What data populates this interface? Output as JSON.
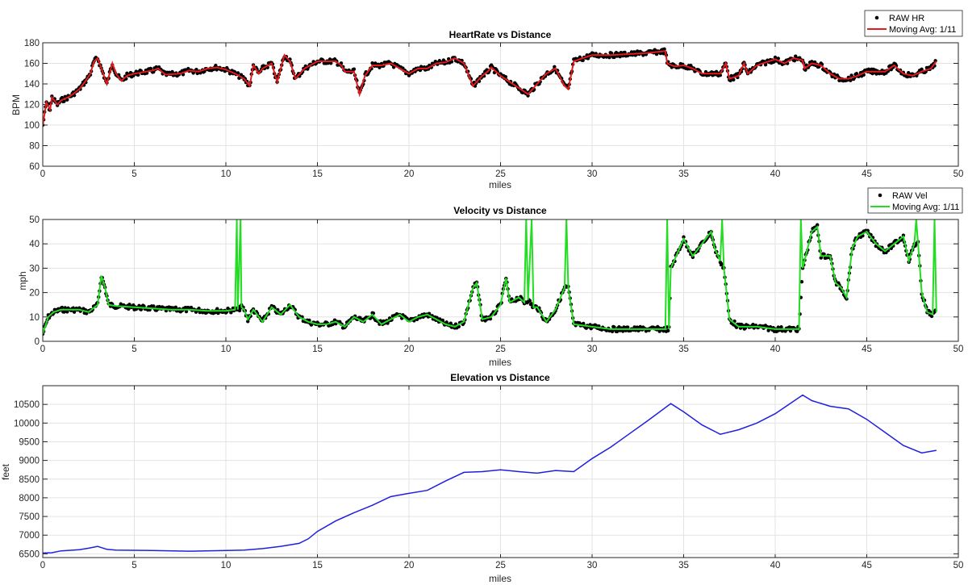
{
  "chart_data": [
    {
      "type": "line",
      "title": "HeartRate vs Distance",
      "xlabel": "miles",
      "ylabel": "BPM",
      "xlim": [
        0,
        50
      ],
      "ylim": [
        60,
        180
      ],
      "xticks": [
        0,
        5,
        10,
        15,
        20,
        25,
        30,
        35,
        40,
        45,
        50
      ],
      "yticks": [
        60,
        80,
        100,
        120,
        140,
        160,
        180
      ],
      "grid": true,
      "legend_position": "top-right",
      "series": [
        {
          "name": "RAW HR",
          "style": "markers",
          "color": "#000000"
        },
        {
          "name": "Moving Avg: 1/11",
          "style": "line",
          "color": "#e41a1c",
          "x": [
            0,
            0.2,
            0.4,
            0.5,
            0.8,
            1,
            1.5,
            2,
            2.3,
            2.6,
            2.8,
            3,
            3.3,
            3.5,
            3.8,
            4,
            4.3,
            4.6,
            5,
            6,
            6.3,
            6.7,
            7.5,
            8,
            8.5,
            9,
            9.5,
            10,
            10.5,
            11,
            11.3,
            11.5,
            11.8,
            12,
            12.5,
            12.8,
            13.2,
            13.5,
            13.8,
            14.3,
            15,
            16,
            16.3,
            16.5,
            17,
            17.3,
            17.6,
            18,
            18.5,
            19,
            19.5,
            20,
            20.5,
            21,
            21.5,
            22,
            22.5,
            23,
            23.5,
            24,
            24.3,
            24.5,
            25,
            25.5,
            26,
            26.5,
            27,
            27.5,
            28,
            28.5,
            28.7,
            29,
            29.5,
            30,
            31,
            32,
            33,
            34,
            34.1,
            34.5,
            35,
            35.5,
            36,
            37,
            37.3,
            37.5,
            38,
            38.3,
            38.5,
            39,
            40,
            40.5,
            41,
            41.5,
            41.6,
            42,
            42.5,
            43,
            43.5,
            44,
            44.5,
            45,
            46,
            46.5,
            47,
            47.5,
            48,
            48.5,
            48.8
          ],
          "y": [
            100,
            122,
            115,
            127,
            120,
            124,
            128,
            135,
            142,
            150,
            162,
            165,
            150,
            140,
            160,
            150,
            143,
            148,
            150,
            153,
            155,
            149,
            150,
            153,
            152,
            155,
            156,
            154,
            150,
            145,
            138,
            158,
            150,
            155,
            160,
            142,
            168,
            162,
            145,
            155,
            162,
            162,
            158,
            152,
            152,
            130,
            148,
            158,
            158,
            160,
            155,
            150,
            155,
            155,
            160,
            161,
            165,
            160,
            138,
            148,
            152,
            156,
            148,
            142,
            136,
            130,
            140,
            150,
            155,
            138,
            135,
            162,
            165,
            168,
            168,
            169,
            170,
            172,
            160,
            157,
            158,
            155,
            150,
            150,
            160,
            145,
            148,
            160,
            150,
            158,
            164,
            160,
            165,
            163,
            155,
            160,
            158,
            150,
            145,
            145,
            148,
            152,
            152,
            158,
            150,
            148,
            152,
            155,
            162
          ]
        }
      ]
    },
    {
      "type": "line",
      "title": "Velocity vs Distance",
      "xlabel": "miles",
      "ylabel": "mph",
      "xlim": [
        0,
        50
      ],
      "ylim": [
        0,
        50
      ],
      "xticks": [
        0,
        5,
        10,
        15,
        20,
        25,
        30,
        35,
        40,
        45,
        50
      ],
      "yticks": [
        0,
        10,
        20,
        30,
        40,
        50
      ],
      "grid": true,
      "legend_position": "top-right",
      "series": [
        {
          "name": "RAW Vel",
          "style": "markers",
          "color": "#000000"
        },
        {
          "name": "Moving Avg: 1/11",
          "style": "line",
          "color": "#22dd22",
          "x": [
            0,
            0.3,
            0.6,
            1,
            1.5,
            2,
            2.5,
            3,
            3.2,
            3.4,
            3.6,
            4,
            5,
            6,
            7,
            8,
            9,
            10,
            10.5,
            10.6,
            10.65,
            10.8,
            10.85,
            11,
            11.2,
            11.5,
            12,
            12.5,
            13,
            13.5,
            14,
            14.5,
            15,
            15.5,
            16,
            16.5,
            17,
            17.5,
            18,
            18.5,
            19,
            19.5,
            20,
            20.5,
            21,
            22,
            22.5,
            23,
            23.5,
            23.7,
            24,
            24.5,
            25,
            25.3,
            25.5,
            26,
            26.3,
            26.4,
            26.5,
            26.7,
            26.8,
            27,
            27.5,
            28,
            28.5,
            28.6,
            28.7,
            29,
            30,
            31,
            32,
            33,
            34,
            34.1,
            34.2,
            34.3,
            35,
            35.5,
            36,
            36.5,
            36.7,
            37,
            37.1,
            37.2,
            37.5,
            38,
            39,
            40,
            40.5,
            41,
            41.3,
            41.4,
            41.5,
            42,
            42.3,
            42.5,
            43,
            43.3,
            43.6,
            43.9,
            44.2,
            44.5,
            45,
            45.5,
            46,
            46.5,
            47,
            47.3,
            47.6,
            47.7,
            47.8,
            48,
            48.3,
            48.6,
            48.7,
            48.8
          ],
          "y": [
            3,
            10,
            12,
            13,
            13,
            13,
            12,
            15,
            27,
            22,
            15,
            14.5,
            14,
            13.5,
            13,
            13,
            12.5,
            12.5,
            13,
            50,
            13,
            50,
            14,
            13,
            9,
            13,
            8,
            14,
            11,
            15,
            10,
            8,
            7,
            7,
            8,
            6,
            10,
            8,
            11,
            7,
            9,
            11,
            8,
            10,
            11,
            7,
            6,
            8,
            22,
            24,
            9,
            10,
            15,
            26,
            16,
            18,
            16,
            50,
            17,
            50,
            14,
            14,
            8,
            13,
            22,
            50,
            22,
            7,
            6,
            5,
            5,
            5,
            5,
            50,
            5,
            30,
            42,
            35,
            40,
            45,
            38,
            33,
            50,
            30,
            9,
            6,
            6,
            5,
            5,
            5,
            5,
            50,
            30,
            45,
            47,
            35,
            35,
            24,
            22,
            18,
            38,
            43,
            45,
            40,
            37,
            40,
            43,
            33,
            40,
            50,
            40,
            20,
            12,
            11,
            50,
            12
          ]
        }
      ]
    },
    {
      "type": "line",
      "title": "Elevation vs Distance",
      "xlabel": "miles",
      "ylabel": "feet",
      "xlim": [
        0,
        50
      ],
      "ylim": [
        6400,
        11000
      ],
      "xticks": [
        0,
        5,
        10,
        15,
        20,
        25,
        30,
        35,
        40,
        45,
        50
      ],
      "yticks": [
        6500,
        7000,
        7500,
        8000,
        8500,
        9000,
        9500,
        10000,
        10500
      ],
      "grid": true,
      "series": [
        {
          "style": "line",
          "color": "#1f1fe0",
          "x": [
            0,
            0.5,
            1,
            2,
            2.5,
            3,
            3.5,
            4,
            6,
            8,
            10,
            11,
            12,
            13,
            14,
            14.5,
            15,
            16,
            17,
            18,
            19,
            20,
            21,
            22,
            23,
            24,
            25,
            26,
            27,
            28,
            29,
            30,
            31,
            32,
            33,
            34.3,
            35,
            36,
            37,
            38,
            39,
            40,
            41.5,
            42,
            43,
            44,
            45,
            46,
            47,
            48,
            48.8
          ],
          "y": [
            6520,
            6530,
            6580,
            6610,
            6650,
            6700,
            6620,
            6600,
            6590,
            6570,
            6590,
            6600,
            6640,
            6700,
            6780,
            6900,
            7100,
            7380,
            7600,
            7800,
            8030,
            8120,
            8200,
            8450,
            8680,
            8700,
            8750,
            8700,
            8660,
            8730,
            8700,
            9050,
            9350,
            9700,
            10050,
            10520,
            10300,
            9950,
            9700,
            9820,
            10000,
            10250,
            10750,
            10600,
            10450,
            10380,
            10100,
            9750,
            9400,
            9200,
            9270
          ]
        }
      ]
    }
  ]
}
